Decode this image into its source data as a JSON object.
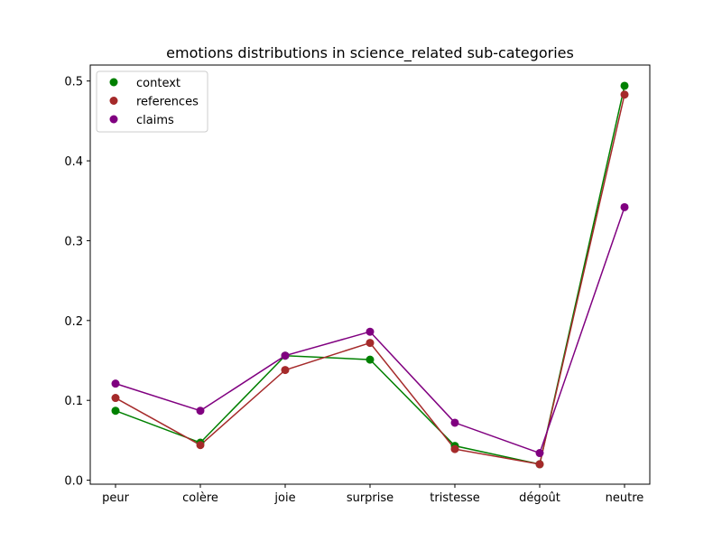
{
  "chart_data": {
    "type": "line",
    "title": "emotions distributions in science_related sub-categories",
    "xlabel": "",
    "ylabel": "",
    "categories": [
      "peur",
      "colère",
      "joie",
      "surprise",
      "tristesse",
      "dégoût",
      "neutre"
    ],
    "ylim": [
      -0.005,
      0.52
    ],
    "yticks": [
      0.0,
      0.1,
      0.2,
      0.3,
      0.4,
      0.5
    ],
    "ytick_labels": [
      "0.0",
      "0.1",
      "0.2",
      "0.3",
      "0.4",
      "0.5"
    ],
    "grid": false,
    "legend_position": "top-left",
    "series": [
      {
        "name": "context",
        "color": "#008000",
        "values": [
          0.087,
          0.047,
          0.156,
          0.151,
          0.043,
          0.02,
          0.494
        ]
      },
      {
        "name": "references",
        "color": "#a52a2a",
        "values": [
          0.103,
          0.044,
          0.138,
          0.172,
          0.039,
          0.02,
          0.483
        ]
      },
      {
        "name": "claims",
        "color": "#800080",
        "values": [
          0.121,
          0.087,
          0.156,
          0.186,
          0.072,
          0.034,
          0.342
        ]
      }
    ]
  }
}
